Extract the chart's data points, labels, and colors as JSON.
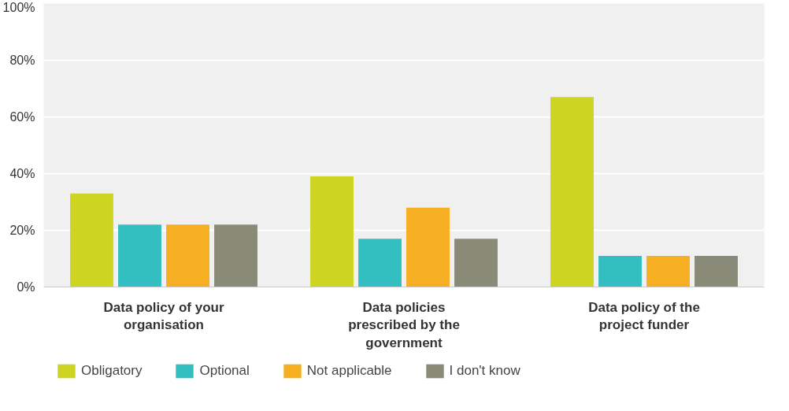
{
  "chart_data": {
    "type": "bar",
    "categories": [
      "Data policy of your organisation",
      "Data policies prescribed by the government",
      "Data policy of the project funder"
    ],
    "series": [
      {
        "name": "Obligatory",
        "color": "#cdd422",
        "values": [
          33,
          39,
          67
        ]
      },
      {
        "name": "Optional",
        "color": "#33bfc1",
        "values": [
          22,
          17,
          11
        ]
      },
      {
        "name": "Not applicable",
        "color": "#f6ae22",
        "values": [
          22,
          28,
          11
        ]
      },
      {
        "name": "I don't know",
        "color": "#8a8a78",
        "values": [
          22,
          17,
          11
        ]
      }
    ],
    "ylim": [
      0,
      100
    ],
    "yticks": [
      {
        "value": 0,
        "label": "0%"
      },
      {
        "value": 20,
        "label": "20%"
      },
      {
        "value": 40,
        "label": "40%"
      },
      {
        "value": 60,
        "label": "60%"
      },
      {
        "value": 80,
        "label": "80%"
      },
      {
        "value": 100,
        "label": "100%"
      }
    ],
    "grid": "y",
    "legend": "bottom"
  }
}
